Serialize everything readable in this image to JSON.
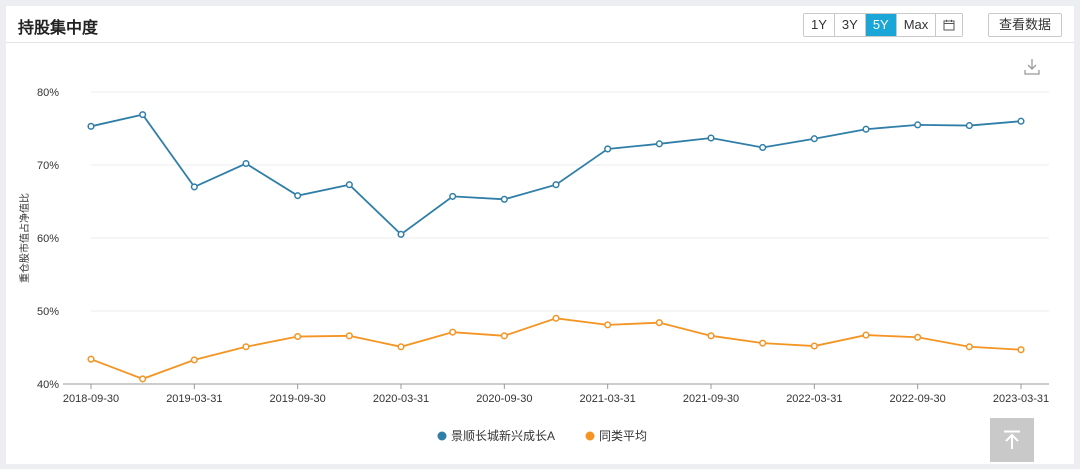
{
  "title": "持股集中度",
  "range_buttons": [
    {
      "label": "1Y",
      "active": false
    },
    {
      "label": "3Y",
      "active": false
    },
    {
      "label": "5Y",
      "active": true
    },
    {
      "label": "Max",
      "active": false
    }
  ],
  "view_data_label": "查看数据",
  "icons": {
    "calendar": "calendar-icon",
    "download": "download-icon",
    "back_to_top": "arrow-up-icon"
  },
  "colors": {
    "series1": "#2f7ea8",
    "series2": "#f39423",
    "active_button": "#1aa6d6"
  },
  "chart_data": {
    "type": "line",
    "ylabel": "重仓股市值占净值比",
    "ylim": [
      40,
      80
    ],
    "y_ticks": [
      "40%",
      "50%",
      "60%",
      "70%",
      "80%"
    ],
    "x_tick_labels": [
      "2018-09-30",
      "2019-03-31",
      "2019-09-30",
      "2020-03-31",
      "2020-09-30",
      "2021-03-31",
      "2021-09-30",
      "2022-03-31",
      "2022-09-30",
      "2023-03-31"
    ],
    "x": [
      "2018-09-30",
      "2018-12-31",
      "2019-03-31",
      "2019-06-30",
      "2019-09-30",
      "2019-12-31",
      "2020-03-31",
      "2020-06-30",
      "2020-09-30",
      "2020-12-31",
      "2021-03-31",
      "2021-06-30",
      "2021-09-30",
      "2021-12-31",
      "2022-03-31",
      "2022-06-30",
      "2022-09-30",
      "2022-12-31",
      "2023-03-31"
    ],
    "series": [
      {
        "name": "景顺长城新兴成长A",
        "values": [
          75.3,
          76.9,
          67.0,
          70.2,
          65.8,
          67.3,
          60.5,
          65.7,
          65.3,
          67.3,
          72.2,
          72.9,
          73.7,
          72.4,
          73.6,
          74.9,
          75.5,
          75.4,
          76.0
        ]
      },
      {
        "name": "同类平均",
        "values": [
          43.4,
          40.7,
          43.3,
          45.1,
          46.5,
          46.6,
          45.1,
          47.1,
          46.6,
          49.0,
          48.1,
          48.4,
          46.6,
          45.6,
          45.2,
          46.7,
          46.4,
          45.1,
          44.7
        ]
      }
    ],
    "grid": true,
    "legend_position": "bottom-center"
  }
}
